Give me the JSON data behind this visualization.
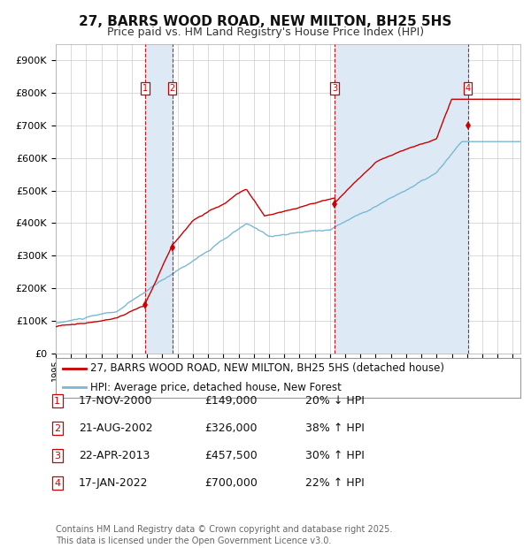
{
  "title": "27, BARRS WOOD ROAD, NEW MILTON, BH25 5HS",
  "subtitle": "Price paid vs. HM Land Registry's House Price Index (HPI)",
  "hpi_label": "HPI: Average price, detached house, New Forest",
  "property_label": "27, BARRS WOOD ROAD, NEW MILTON, BH25 5HS (detached house)",
  "ylim": [
    0,
    950000
  ],
  "yticks": [
    0,
    100000,
    200000,
    300000,
    400000,
    500000,
    600000,
    700000,
    800000,
    900000
  ],
  "ytick_labels": [
    "£0",
    "£100K",
    "£200K",
    "£300K",
    "£400K",
    "£500K",
    "£600K",
    "£700K",
    "£800K",
    "£900K"
  ],
  "xlim_start": 1995.0,
  "xlim_end": 2025.5,
  "background_color": "#ffffff",
  "plot_bg_color": "#ffffff",
  "grid_color": "#cccccc",
  "red_line_color": "#cc0000",
  "blue_line_color": "#7ab8d4",
  "shade_color": "#ddeaf5",
  "dashed_color": "#cc0000",
  "purchases": [
    {
      "num": 1,
      "date_str": "17-NOV-2000",
      "date_x": 2000.88,
      "price": 149000,
      "pct": "20%",
      "dir": "↓",
      "rel": "HPI"
    },
    {
      "num": 2,
      "date_str": "21-AUG-2002",
      "date_x": 2002.64,
      "price": 326000,
      "pct": "38%",
      "dir": "↑",
      "rel": "HPI"
    },
    {
      "num": 3,
      "date_str": "22-APR-2013",
      "date_x": 2013.31,
      "price": 457500,
      "pct": "30%",
      "dir": "↑",
      "rel": "HPI"
    },
    {
      "num": 4,
      "date_str": "17-JAN-2022",
      "date_x": 2022.05,
      "price": 700000,
      "pct": "22%",
      "dir": "↑",
      "rel": "HPI"
    }
  ],
  "footer": "Contains HM Land Registry data © Crown copyright and database right 2025.\nThis data is licensed under the Open Government Licence v3.0.",
  "title_fontsize": 11,
  "subtitle_fontsize": 9,
  "tick_fontsize": 8,
  "legend_fontsize": 8.5,
  "table_fontsize": 9,
  "footer_fontsize": 7
}
